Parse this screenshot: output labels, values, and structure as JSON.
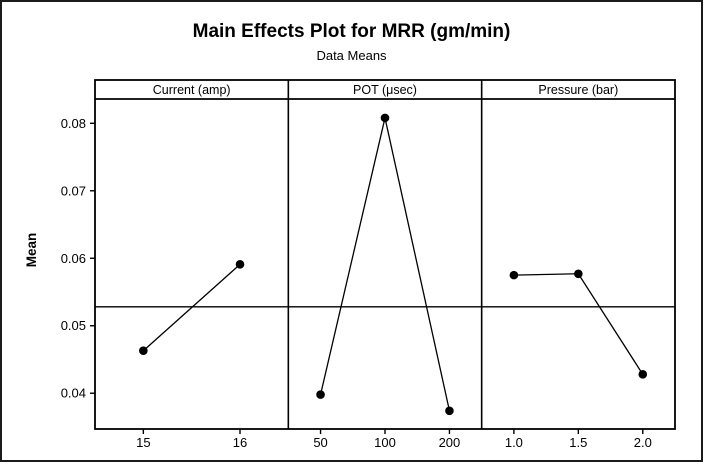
{
  "chart_data": {
    "type": "line",
    "subtype": "main-effects-plot",
    "title": "Main Effects Plot for MRR (gm/min)",
    "subtitle": "Data Means",
    "ylabel": "Mean",
    "ylim": [
      0.0347,
      0.0836
    ],
    "yticks": [
      0.04,
      0.05,
      0.06,
      0.07,
      0.08
    ],
    "ytick_labels": [
      "0.04",
      "0.05",
      "0.06",
      "0.07",
      "0.08"
    ],
    "grand_mean_line": 0.0528,
    "grid": false,
    "legend": "none",
    "line_color": "#000000",
    "marker_color": "#000000",
    "marker": "filled-circle",
    "background": "#ffffff",
    "panels": [
      {
        "label": "Current (amp)",
        "categories": [
          "15",
          "16"
        ],
        "values": [
          0.0463,
          0.0591
        ]
      },
      {
        "label": "POT (μsec)",
        "categories": [
          "50",
          "100",
          "200"
        ],
        "values": [
          0.0398,
          0.0808,
          0.0374
        ]
      },
      {
        "label": "Pressure (bar)",
        "categories": [
          "1.0",
          "1.5",
          "2.0"
        ],
        "values": [
          0.0575,
          0.0577,
          0.0428
        ]
      }
    ]
  }
}
